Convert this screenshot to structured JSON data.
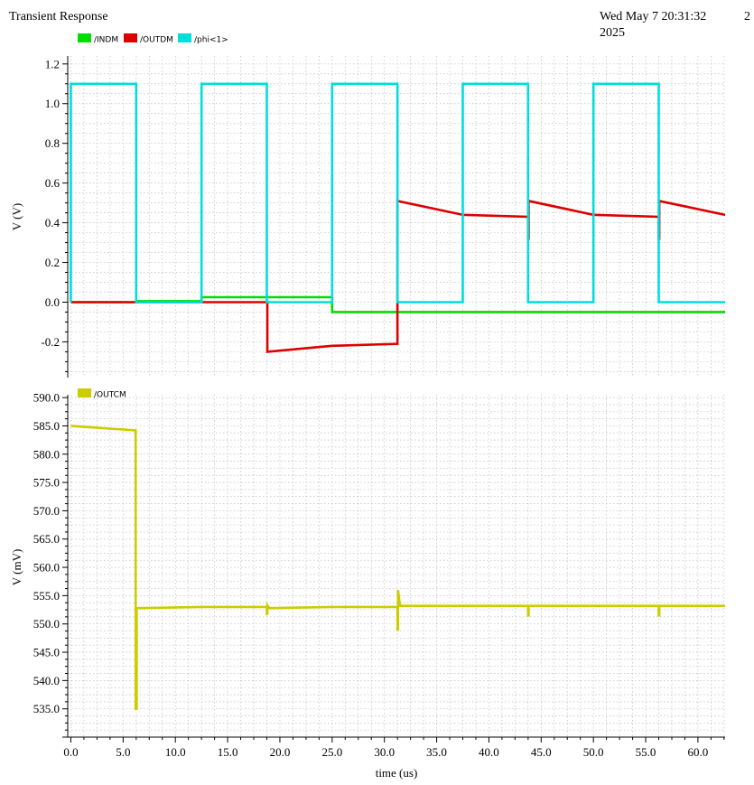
{
  "header": {
    "title": "Transient Response",
    "datetime_line1": "Wed May 7 20:31:32",
    "datetime_line2": "2025",
    "corner_text": "2"
  },
  "chart_data": [
    {
      "type": "line",
      "ylabel": "V (V)",
      "ylim": [
        -0.38,
        1.24
      ],
      "yticks": [
        -0.2,
        0.0,
        0.2,
        0.4,
        0.6,
        0.8,
        1.0,
        1.2
      ],
      "ytick_labels": [
        "-0.2",
        "0.0",
        "0.2",
        "0.4",
        "0.6",
        "0.8",
        "1.0",
        "1.2"
      ],
      "xlim": [
        -0.3,
        62.6
      ],
      "grid": true,
      "legend_position": "top-left",
      "series": [
        {
          "name": "/INDM",
          "color": "#00dd00",
          "x": [
            0,
            6.25,
            6.25,
            12.5,
            12.5,
            25.0,
            25.0,
            62.6
          ],
          "y": [
            0.0,
            0.0,
            0.005,
            0.005,
            0.025,
            0.025,
            -0.05,
            -0.05
          ]
        },
        {
          "name": "/OUTDM",
          "color": "#dd0000",
          "x": [
            0,
            18.8,
            18.8,
            25.0,
            31.25,
            31.25,
            37.5,
            43.75,
            43.75,
            43.8,
            43.8,
            50.0,
            56.25,
            56.25,
            56.3,
            56.3,
            62.6
          ],
          "y": [
            0.0,
            0.0,
            -0.25,
            -0.22,
            -0.21,
            0.51,
            0.44,
            0.43,
            0.32,
            0.32,
            0.51,
            0.44,
            0.43,
            0.32,
            0.32,
            0.51,
            0.44
          ]
        },
        {
          "name": "/phi<1>",
          "color": "#00dddd",
          "x": [
            0,
            0,
            6.25,
            6.25,
            12.5,
            12.5,
            18.75,
            18.75,
            25.0,
            25.0,
            31.25,
            31.25,
            37.5,
            37.5,
            43.75,
            43.75,
            50.0,
            50.0,
            56.25,
            56.25,
            62.6
          ],
          "y": [
            0.0,
            1.1,
            1.1,
            0.0,
            0.0,
            1.1,
            1.1,
            0.0,
            0.0,
            1.1,
            1.1,
            0.0,
            0.0,
            1.1,
            1.1,
            0.0,
            0.0,
            1.1,
            1.1,
            0.0,
            0.0
          ]
        }
      ]
    },
    {
      "type": "line",
      "ylabel": "V (mV)",
      "xlabel": "time (us)",
      "ylim": [
        530.0,
        590.5
      ],
      "yticks": [
        535.0,
        540.0,
        545.0,
        550.0,
        555.0,
        560.0,
        565.0,
        570.0,
        575.0,
        580.0,
        585.0,
        590.0
      ],
      "ytick_labels": [
        "535.0",
        "540.0",
        "545.0",
        "550.0",
        "555.0",
        "560.0",
        "565.0",
        "570.0",
        "575.0",
        "580.0",
        "585.0",
        "590.0"
      ],
      "xlim": [
        -0.3,
        62.6
      ],
      "xticks": [
        0,
        5,
        10,
        15,
        20,
        25,
        30,
        35,
        40,
        45,
        50,
        55,
        60
      ],
      "xtick_labels": [
        "0.0",
        "5.0",
        "10.0",
        "15.0",
        "20.0",
        "25.0",
        "30.0",
        "35.0",
        "40.0",
        "45.0",
        "50.0",
        "55.0",
        "60.0"
      ],
      "grid": true,
      "legend_position": "top-left",
      "series": [
        {
          "name": "/OUTCM",
          "color": "#cccc00",
          "x": [
            0,
            6.2,
            6.2,
            6.3,
            6.3,
            6.5,
            12.5,
            18.75,
            18.75,
            18.8,
            18.8,
            19.0,
            19.0,
            25.0,
            31.25,
            31.25,
            31.3,
            31.3,
            31.5,
            31.5,
            37.5,
            43.75,
            43.75,
            43.8,
            43.8,
            50.0,
            56.25,
            56.25,
            56.3,
            56.3,
            62.6
          ],
          "y": [
            585.0,
            584.2,
            535.0,
            535.0,
            552.8,
            552.8,
            553.0,
            553.0,
            551.8,
            551.8,
            553.3,
            552.8,
            552.8,
            553.0,
            553.0,
            549.0,
            549.0,
            556.0,
            553.2,
            553.2,
            553.2,
            553.2,
            551.5,
            551.5,
            553.2,
            553.2,
            553.2,
            551.5,
            551.5,
            553.2,
            553.2
          ]
        }
      ]
    }
  ]
}
